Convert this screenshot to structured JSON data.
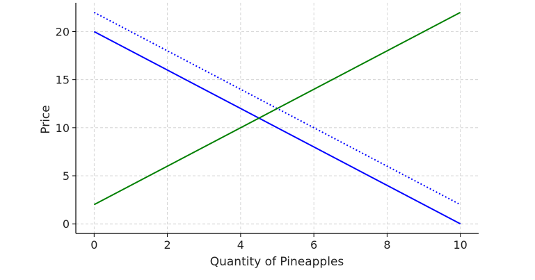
{
  "chart_data": {
    "type": "line",
    "title": "",
    "xlabel": "Quantity of Pineapples",
    "ylabel": "Price",
    "xlim": [
      -0.5,
      10.5
    ],
    "ylim": [
      -1,
      23
    ],
    "xticks": [
      0,
      2,
      4,
      6,
      8,
      10
    ],
    "yticks": [
      0,
      5,
      10,
      15,
      20
    ],
    "grid": true,
    "grid_style": "dashed",
    "series": [
      {
        "color": "#0000ff",
        "style": "solid",
        "x": [
          0,
          10
        ],
        "y": [
          20,
          0
        ]
      },
      {
        "color": "#0000ff",
        "style": "dotted",
        "x": [
          0,
          10
        ],
        "y": [
          22,
          2
        ]
      },
      {
        "color": "#008000",
        "style": "solid",
        "x": [
          0,
          10
        ],
        "y": [
          2,
          22
        ]
      }
    ]
  }
}
